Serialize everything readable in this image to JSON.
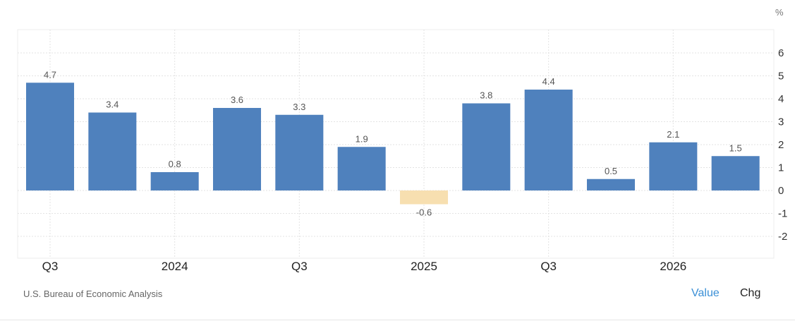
{
  "chart_data": {
    "type": "bar",
    "unit": "%",
    "categories": [
      "Q3",
      "",
      "2024",
      "",
      "Q3",
      "",
      "2025",
      "",
      "Q3",
      "",
      "2026",
      ""
    ],
    "values": [
      4.7,
      3.4,
      0.8,
      3.6,
      3.3,
      1.9,
      -0.6,
      3.8,
      4.4,
      0.5,
      2.1,
      1.5
    ],
    "data_labels": [
      "4.7",
      "3.4",
      "0.8",
      "3.6",
      "3.3",
      "1.9",
      "-0.6",
      "3.8",
      "4.4",
      "0.5",
      "2.1",
      "1.5"
    ],
    "x_tick_labels": [
      "Q3",
      "2024",
      "Q3",
      "2025",
      "Q3",
      "2026"
    ],
    "y_ticks": [
      6,
      5,
      4,
      3,
      2,
      1,
      0,
      -1,
      -2
    ],
    "ylim": [
      -3,
      7
    ],
    "grid": true,
    "colors": {
      "positive": "#4f81bd",
      "negative": "#f7dfb0"
    }
  },
  "footer": {
    "source": "U.S. Bureau of Economic Analysis",
    "value_button": "Value",
    "chg_button": "Chg"
  }
}
